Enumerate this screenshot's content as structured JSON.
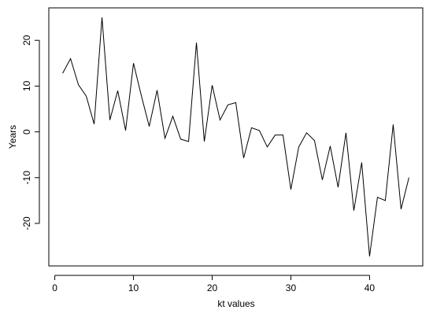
{
  "chart_data": {
    "type": "line",
    "x_label": "kt values",
    "y_label": "Years",
    "x": [
      1,
      2,
      3,
      4,
      5,
      6,
      7,
      8,
      9,
      10,
      11,
      12,
      13,
      14,
      15,
      16,
      17,
      18,
      19,
      20,
      21,
      22,
      23,
      24,
      25,
      26,
      27,
      28,
      29,
      30,
      31,
      32,
      33,
      34,
      35,
      36,
      37,
      38,
      39,
      40,
      41,
      42,
      43,
      44,
      45
    ],
    "values": [
      12.8,
      16,
      10.3,
      7.8,
      1.7,
      25,
      2.6,
      9,
      0.3,
      15,
      7.9,
      1.2,
      9.1,
      -1.4,
      3.4,
      -1.6,
      -2.1,
      19.5,
      -2.1,
      10.2,
      2.6,
      5.9,
      6.4,
      -5.7,
      0.9,
      0.3,
      -3.3,
      -0.7,
      -0.7,
      -12.6,
      -3.3,
      -0.2,
      -1.9,
      -10.5,
      -3.1,
      -12.1,
      -0.2,
      -17.2,
      -6.7,
      -27.2,
      -14.3,
      -15,
      1.6,
      -16.9,
      -10
    ],
    "color": "#000000",
    "xlim": [
      -0.76,
      46.76
    ],
    "xticks": [
      0,
      10,
      20,
      30,
      40
    ],
    "ylim": [
      -29.29,
      27.09
    ],
    "yticks": [
      -20,
      -10,
      0,
      10,
      20
    ]
  }
}
